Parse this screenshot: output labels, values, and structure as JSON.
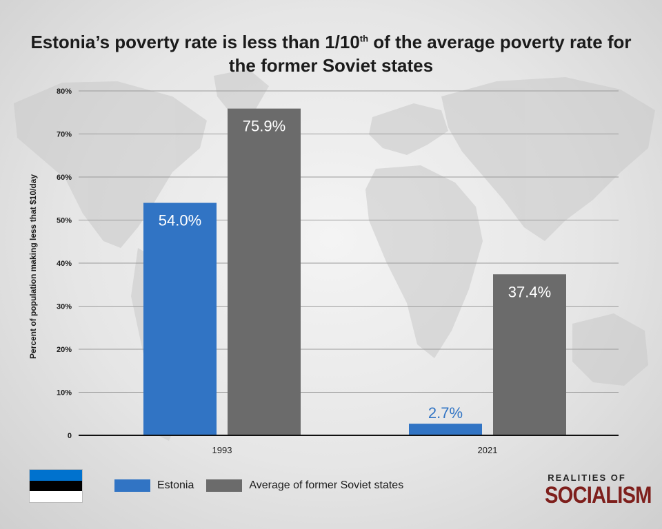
{
  "colors": {
    "estonia": "#3174c4",
    "soviet": "#6b6b6b",
    "grid": "#9a9a9a",
    "axis": "#111111"
  },
  "flag": {
    "stripes": [
      "#0072ce",
      "#000000",
      "#ffffff"
    ]
  },
  "brand": {
    "top": "REALITIES OF",
    "bottom": "SOCIALISM"
  },
  "chart_data": {
    "type": "bar",
    "title": "Estonia’s poverty rate is less than 1/10th of the average poverty rate for the former Soviet states",
    "title_parts": {
      "before": "Estonia’s poverty rate is less than 1/10",
      "sup": "th",
      "after": " of the average poverty rate for the former Soviet states"
    },
    "xlabel": "",
    "ylabel": "Percent of population making less that $10/day",
    "ylim": [
      0,
      80
    ],
    "yticks": [
      {
        "value": 0,
        "label": "0"
      },
      {
        "value": 10,
        "label": "10%"
      },
      {
        "value": 20,
        "label": "20%"
      },
      {
        "value": 30,
        "label": "30%"
      },
      {
        "value": 40,
        "label": "40%"
      },
      {
        "value": 50,
        "label": "50%"
      },
      {
        "value": 60,
        "label": "60%"
      },
      {
        "value": 70,
        "label": "70%"
      },
      {
        "value": 80,
        "label": "80%"
      }
    ],
    "categories": [
      "1993",
      "2021"
    ],
    "series": [
      {
        "name": "Estonia",
        "values": [
          54.0,
          2.7
        ],
        "labels": [
          "54.0%",
          "2.7%"
        ]
      },
      {
        "name": "Average of former Soviet states",
        "values": [
          75.9,
          37.4
        ],
        "labels": [
          "75.9%",
          "37.4%"
        ]
      }
    ],
    "grid": true,
    "legend_position": "bottom"
  }
}
